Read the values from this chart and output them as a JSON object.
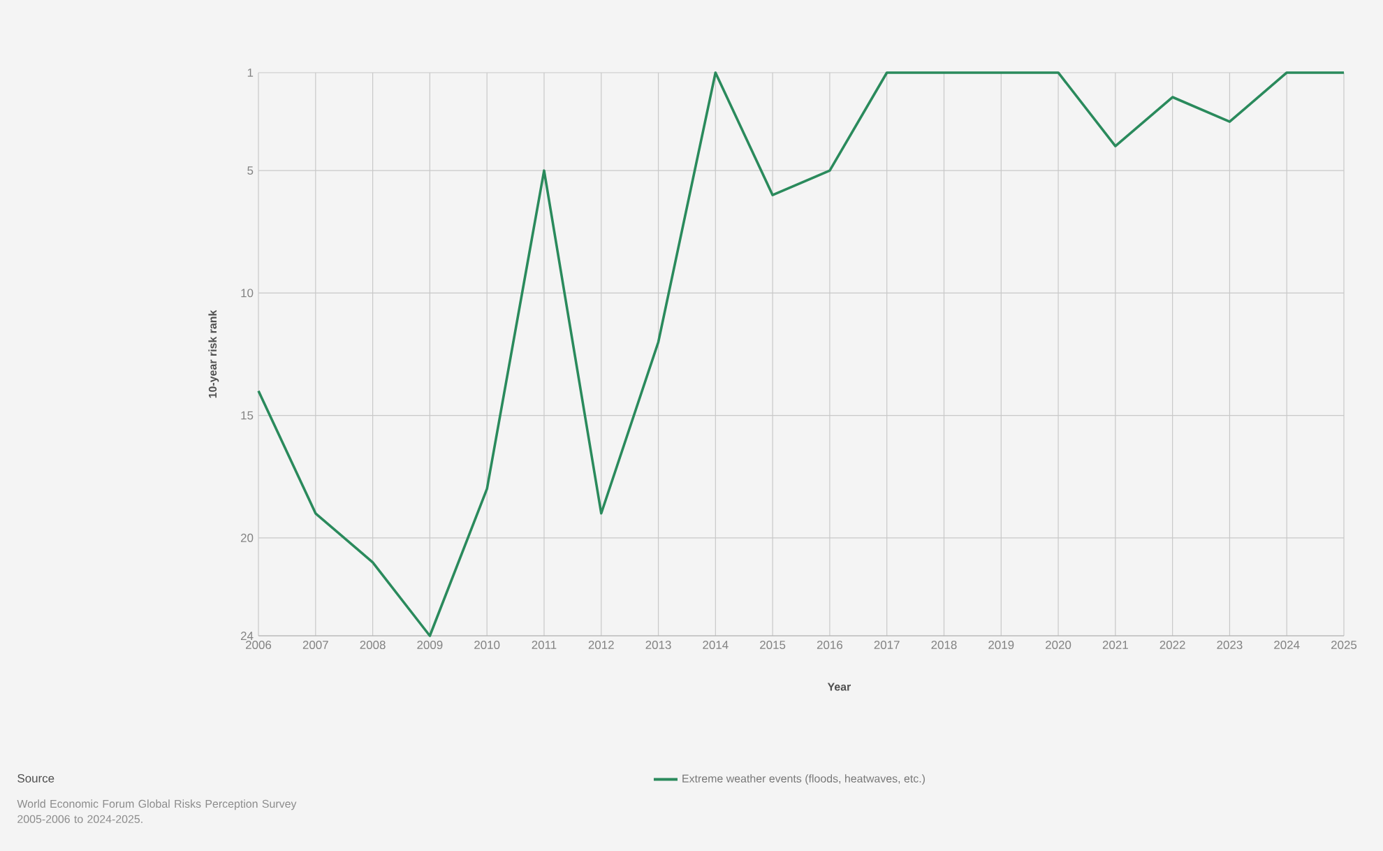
{
  "chart_data": {
    "type": "line",
    "xlabel": "Year",
    "ylabel": "10-year risk rank",
    "x": [
      2006,
      2007,
      2008,
      2009,
      2010,
      2011,
      2012,
      2013,
      2014,
      2015,
      2016,
      2017,
      2018,
      2019,
      2020,
      2021,
      2022,
      2023,
      2024,
      2025
    ],
    "series": [
      {
        "name": "Extreme weather events (floods, heatwaves, etc.)",
        "color": "#2a8a5c",
        "values": [
          14,
          19,
          21,
          24,
          18,
          5,
          19,
          12,
          1,
          6,
          5,
          1,
          1,
          1,
          1,
          4,
          2,
          3,
          1,
          1
        ]
      }
    ],
    "xlim": [
      2006,
      2025
    ],
    "xticks": [
      2006,
      2007,
      2008,
      2009,
      2010,
      2011,
      2012,
      2013,
      2014,
      2015,
      2016,
      2017,
      2018,
      2019,
      2020,
      2021,
      2022,
      2023,
      2024,
      2025
    ],
    "ylim": [
      24,
      1
    ],
    "yticks": [
      1,
      5,
      10,
      15,
      20,
      24
    ],
    "grid": true,
    "legend": "bottom",
    "annotations": [
      "Source",
      "World Economic Forum Global Risks Perception Survey 2005-2006 to 2024-2025."
    ]
  }
}
